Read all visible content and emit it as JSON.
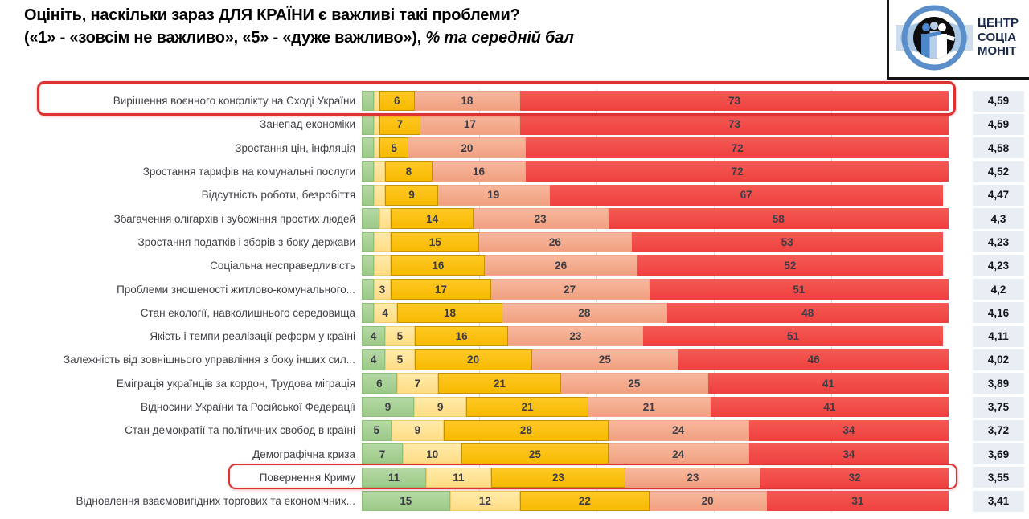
{
  "title": {
    "line1": "Оцініть, наскільки зараз ДЛЯ КРАЇНИ є важливі такі проблеми?",
    "line2_prefix": "(«1» - «зовсім не важливо», «5» - «дуже важливо»), ",
    "line2_italic": "% та середній бал"
  },
  "logo": {
    "line1": "ЦЕНТР",
    "line2": "СОЦІА",
    "line3": "МОНІТ"
  },
  "colors": {
    "segment_rating1_green": "#a6d096",
    "segment_rating2_pale_yellow": "#ffe295",
    "segment_rating3_gold": "#ffc000",
    "segment_rating4_salmon": "#f4a98b",
    "segment_rating5_red": "#f24b4b",
    "score_cell_bg": "#e9edf4",
    "highlight_outline": "#de3131"
  },
  "chart_data": {
    "type": "bar",
    "variant": "horizontal-stacked-100-percent",
    "value_unit": "%",
    "x_range": [
      0,
      100
    ],
    "gridlines_percent": [
      20,
      40,
      60,
      80
    ],
    "series_names": [
      "1 (зовсім не важливо)",
      "2",
      "3",
      "4",
      "5 (дуже важливо)"
    ],
    "score_column_meaning": "середній бал",
    "rows": [
      {
        "label": "Вирішення воєнного конфлікту на Сході України",
        "values": [
          2,
          1,
          6,
          18,
          73
        ],
        "value_labels": [
          "",
          "",
          "6",
          "18",
          "73"
        ],
        "score": "4,59",
        "highlighted": true
      },
      {
        "label": "Занепад економіки",
        "values": [
          2,
          1,
          7,
          17,
          73
        ],
        "value_labels": [
          "",
          "",
          "7",
          "17",
          "73"
        ],
        "score": "4,59",
        "highlighted": false
      },
      {
        "label": "Зростання цін, інфляція",
        "values": [
          2,
          1,
          5,
          20,
          72
        ],
        "value_labels": [
          "",
          "",
          "5",
          "20",
          "72"
        ],
        "score": "4,58",
        "highlighted": false
      },
      {
        "label": "Зростання тарифів на комунальні послуги",
        "values": [
          2,
          2,
          8,
          16,
          72
        ],
        "value_labels": [
          "",
          "",
          "8",
          "16",
          "72"
        ],
        "score": "4,52",
        "highlighted": false
      },
      {
        "label": "Відсутність роботи, безробіття",
        "values": [
          2,
          2,
          9,
          19,
          67
        ],
        "value_labels": [
          "",
          "",
          "9",
          "19",
          "67"
        ],
        "score": "4,47",
        "highlighted": false
      },
      {
        "label": "Збагачення олігархів і зубожіння простих людей",
        "values": [
          3,
          2,
          14,
          23,
          58
        ],
        "value_labels": [
          "",
          "",
          "14",
          "23",
          "58"
        ],
        "score": "4,3",
        "highlighted": false
      },
      {
        "label": "Зростання податків і зборів з боку держави",
        "values": [
          2,
          3,
          15,
          26,
          53
        ],
        "value_labels": [
          "",
          "",
          "15",
          "26",
          "53"
        ],
        "score": "4,23",
        "highlighted": false
      },
      {
        "label": "Соціальна несправедливість",
        "values": [
          2,
          3,
          16,
          26,
          52
        ],
        "value_labels": [
          "",
          "",
          "16",
          "26",
          "52"
        ],
        "score": "4,23",
        "highlighted": false
      },
      {
        "label": "Проблеми зношеності житлово-комунального...",
        "values": [
          2,
          3,
          17,
          27,
          51
        ],
        "value_labels": [
          "",
          "3",
          "17",
          "27",
          "51"
        ],
        "score": "4,2",
        "highlighted": false
      },
      {
        "label": "Стан екології, навколишнього середовища",
        "values": [
          2,
          4,
          18,
          28,
          48
        ],
        "value_labels": [
          "",
          "4",
          "18",
          "28",
          "48"
        ],
        "score": "4,16",
        "highlighted": false
      },
      {
        "label": "Якість і темпи реалізації реформ у країні",
        "values": [
          4,
          5,
          16,
          23,
          51
        ],
        "value_labels": [
          "4",
          "5",
          "16",
          "23",
          "51"
        ],
        "score": "4,11",
        "highlighted": false
      },
      {
        "label": "Залежність від зовнішнього управління з боку інших сил...",
        "values": [
          4,
          5,
          20,
          25,
          46
        ],
        "value_labels": [
          "4",
          "5",
          "20",
          "25",
          "46"
        ],
        "score": "4,02",
        "highlighted": false
      },
      {
        "label": "Еміграція українців за кордон, Трудова міграція",
        "values": [
          6,
          7,
          21,
          25,
          41
        ],
        "value_labels": [
          "6",
          "7",
          "21",
          "25",
          "41"
        ],
        "score": "3,89",
        "highlighted": false
      },
      {
        "label": "Відносини України та Російської Федерації",
        "values": [
          9,
          9,
          21,
          21,
          41
        ],
        "value_labels": [
          "9",
          "9",
          "21",
          "21",
          "41"
        ],
        "score": "3,75",
        "highlighted": false
      },
      {
        "label": "Стан демократії та політичних свобод в країні",
        "values": [
          5,
          9,
          28,
          24,
          34
        ],
        "value_labels": [
          "5",
          "9",
          "28",
          "24",
          "34"
        ],
        "score": "3,72",
        "highlighted": false
      },
      {
        "label": "Демографічна криза",
        "values": [
          7,
          10,
          25,
          24,
          34
        ],
        "value_labels": [
          "7",
          "10",
          "25",
          "24",
          "34"
        ],
        "score": "3,69",
        "highlighted": false
      },
      {
        "label": "Повернення Криму",
        "values": [
          11,
          11,
          23,
          23,
          32
        ],
        "value_labels": [
          "11",
          "11",
          "23",
          "23",
          "32"
        ],
        "score": "3,55",
        "highlighted": true
      },
      {
        "label": "Відновлення взаємовигідних торгових та економічних...",
        "values": [
          15,
          12,
          22,
          20,
          31
        ],
        "value_labels": [
          "15",
          "12",
          "22",
          "20",
          "31"
        ],
        "score": "3,41",
        "highlighted": false
      }
    ]
  }
}
